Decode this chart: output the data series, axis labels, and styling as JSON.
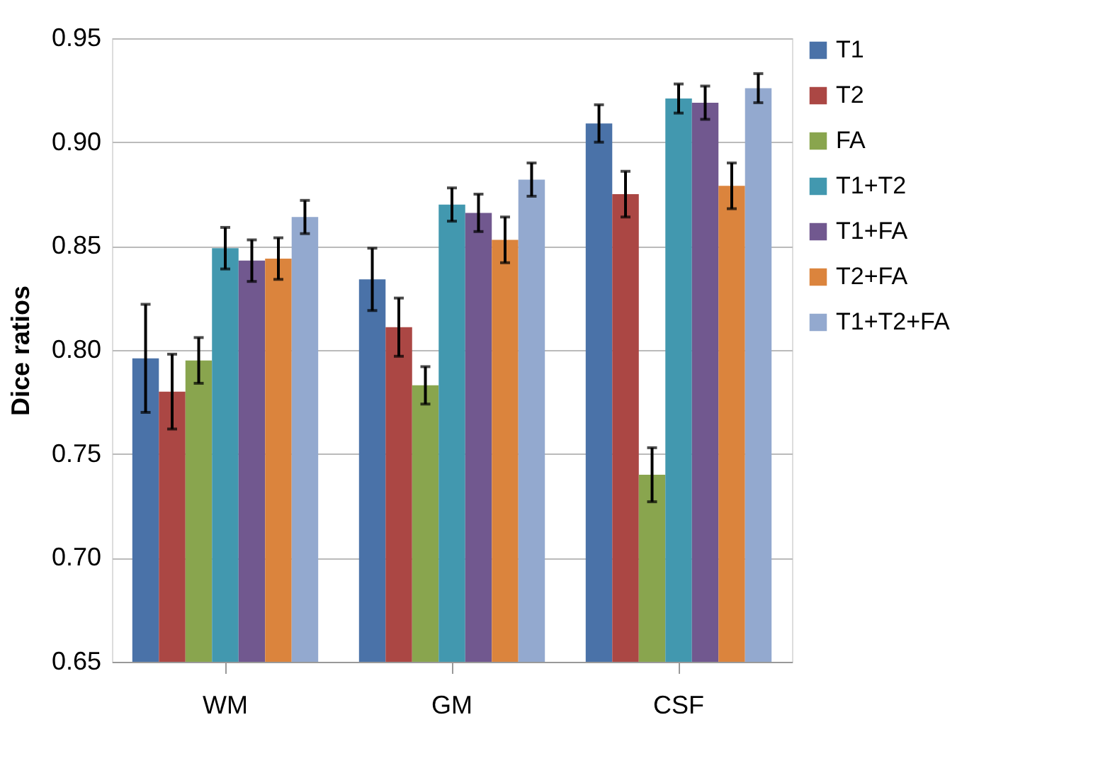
{
  "chart_data": {
    "type": "bar",
    "ylabel": "Dice ratios",
    "categories": [
      "WM",
      "GM",
      "CSF"
    ],
    "series": [
      {
        "name": "T1",
        "color": "#4a72a8",
        "values": [
          0.796,
          0.834,
          0.909
        ],
        "errors": [
          0.026,
          0.015,
          0.009
        ]
      },
      {
        "name": "T2",
        "color": "#ab4744",
        "values": [
          0.78,
          0.811,
          0.875
        ],
        "errors": [
          0.018,
          0.014,
          0.011
        ]
      },
      {
        "name": "FA",
        "color": "#89a54e",
        "values": [
          0.795,
          0.783,
          0.74
        ],
        "errors": [
          0.011,
          0.009,
          0.013
        ]
      },
      {
        "name": "T1+T2",
        "color": "#4298af",
        "values": [
          0.849,
          0.87,
          0.921
        ],
        "errors": [
          0.01,
          0.008,
          0.007
        ]
      },
      {
        "name": "T1+FA",
        "color": "#71588f",
        "values": [
          0.843,
          0.866,
          0.919
        ],
        "errors": [
          0.01,
          0.009,
          0.008
        ]
      },
      {
        "name": "T2+FA",
        "color": "#db843d",
        "values": [
          0.844,
          0.853,
          0.879
        ],
        "errors": [
          0.01,
          0.011,
          0.011
        ]
      },
      {
        "name": "T1+T2+FA",
        "color": "#93a9cf",
        "values": [
          0.864,
          0.882,
          0.926
        ],
        "errors": [
          0.008,
          0.008,
          0.007
        ]
      }
    ],
    "ylim": [
      0.65,
      0.95
    ],
    "yticks": [
      0.65,
      {
        "value": 0.7,
        "label": "0.70"
      },
      0.75,
      {
        "value": 0.8,
        "label": "0.80"
      },
      0.85,
      {
        "value": 0.9,
        "label": "0.90"
      },
      0.95
    ],
    "grid": "y",
    "legend": "right"
  }
}
